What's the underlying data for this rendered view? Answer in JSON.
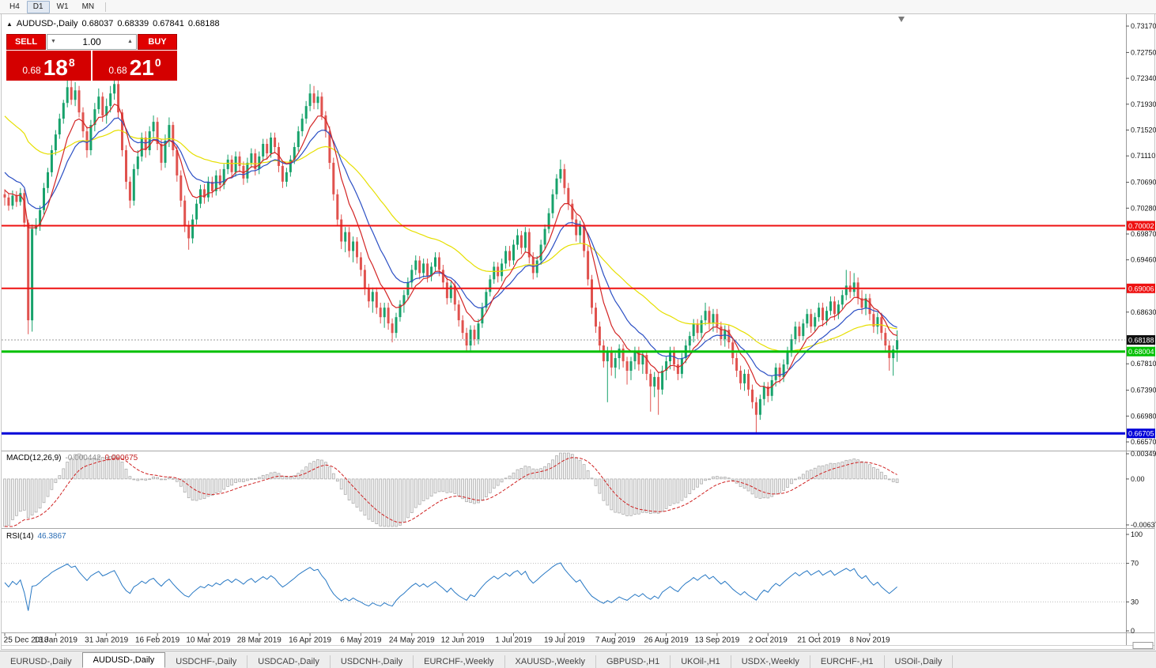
{
  "toolbar": {
    "timeframes": [
      "H4",
      "D1",
      "W1",
      "MN"
    ],
    "active_timeframe": "D1"
  },
  "chart": {
    "title": "AUDUSD-,Daily",
    "ohlc": {
      "open": "0.68037",
      "high": "0.68339",
      "low": "0.67841",
      "close": "0.68188"
    },
    "trade_panel": {
      "sell_label": "SELL",
      "buy_label": "BUY",
      "volume": "1.00",
      "sell_price": {
        "small": "0.68",
        "big": "18",
        "sup": "8"
      },
      "buy_price": {
        "small": "0.68",
        "big": "21",
        "sup": "0"
      }
    },
    "price_scale_ticks": [
      "0.73170",
      "0.72750",
      "0.72340",
      "0.71930",
      "0.71520",
      "0.71110",
      "0.70690",
      "0.70280",
      "0.69870",
      "0.69460",
      "0.68630",
      "0.67810",
      "0.67390",
      "0.66980",
      "0.66570"
    ],
    "hlines": [
      {
        "price": 0.70002,
        "label": "0.70002",
        "color": "#ee1111",
        "width": 2
      },
      {
        "price": 0.69006,
        "label": "0.69006",
        "color": "#ee1111",
        "width": 2
      },
      {
        "price": 0.68004,
        "label": "0.68004",
        "color": "#00c000",
        "width": 3
      },
      {
        "price": 0.66705,
        "label": "0.66705",
        "color": "#0000d8",
        "width": 3
      }
    ],
    "current_price": {
      "value": 0.68188,
      "label": "0.68188",
      "tag_color": "#101010"
    },
    "candle_colors": {
      "up": "#17a26b",
      "down": "#e0524e"
    },
    "ma_lines": [
      {
        "name": "fast-ma-red",
        "period": 8,
        "color": "#d32525",
        "seed": 0.706
      },
      {
        "name": "mid-ma-blue",
        "period": 16,
        "color": "#2b4fc4",
        "seed": 0.709
      },
      {
        "name": "slow-ma-yellow",
        "period": 45,
        "color": "#e6df00",
        "seed": 0.718
      }
    ],
    "dates": [
      {
        "label": "25 Dec 2018",
        "i": 0
      },
      {
        "label": "13 Jan 2019",
        "i": 13
      },
      {
        "label": "31 Jan 2019",
        "i": 26
      },
      {
        "label": "16 Feb 2019",
        "i": 39
      },
      {
        "label": "10 Mar 2019",
        "i": 52
      },
      {
        "label": "28 Mar 2019",
        "i": 65
      },
      {
        "label": "16 Apr 2019",
        "i": 78
      },
      {
        "label": "6 May 2019",
        "i": 91
      },
      {
        "label": "24 May 2019",
        "i": 104
      },
      {
        "label": "12 Jun 2019",
        "i": 117
      },
      {
        "label": "1 Jul 2019",
        "i": 130
      },
      {
        "label": "19 Jul 2019",
        "i": 143
      },
      {
        "label": "7 Aug 2019",
        "i": 156
      },
      {
        "label": "26 Aug 2019",
        "i": 169
      },
      {
        "label": "13 Sep 2019",
        "i": 182
      },
      {
        "label": "2 Oct 2019",
        "i": 195
      },
      {
        "label": "21 Oct 2019",
        "i": 208
      },
      {
        "label": "8 Nov 2019",
        "i": 221
      }
    ]
  },
  "macd_panel": {
    "label": "MACD(12,26,9)",
    "value_1": "-0.000442",
    "value_2": "0.000675",
    "scale": [
      "0.00349",
      "0.00",
      "-0.00637"
    ],
    "params": {
      "fast": 12,
      "slow": 26,
      "signal": 9
    }
  },
  "rsi_panel": {
    "label": "RSI(14)",
    "value": "46.3867",
    "scale": [
      "100",
      "70",
      "30",
      "0"
    ],
    "period": 14,
    "levels": [
      70,
      30
    ]
  },
  "tabs": {
    "active": "AUDUSD-,Daily",
    "items": [
      "EURUSD-,Daily",
      "AUDUSD-,Daily",
      "USDCHF-,Daily",
      "USDCAD-,Daily",
      "USDCNH-,Daily",
      "EURCHF-,Weekly",
      "XAUUSD-,Weekly",
      "GBPUSD-,H1",
      "UKOil-,H1",
      "USDX-,Weekly",
      "EURCHF-,H1",
      "USOil-,Daily"
    ]
  },
  "chart_data": {
    "type": "candlestick",
    "symbol": "AUDUSD",
    "timeframe": "Daily",
    "first_open": 0.705,
    "open_rule": "previous_close",
    "candles_hlc": [
      [
        0.7058,
        0.7032,
        0.7045
      ],
      [
        0.7052,
        0.7024,
        0.7032
      ],
      [
        0.7056,
        0.7026,
        0.7048
      ],
      [
        0.7055,
        0.703,
        0.7038
      ],
      [
        0.706,
        0.7032,
        0.7052
      ],
      [
        0.7058,
        0.6998,
        0.7005
      ],
      [
        0.701,
        0.6828,
        0.685
      ],
      [
        0.7002,
        0.6832,
        0.6995
      ],
      [
        0.7012,
        0.6985,
        0.7
      ],
      [
        0.7032,
        0.6992,
        0.7025
      ],
      [
        0.7068,
        0.7018,
        0.706
      ],
      [
        0.7092,
        0.7052,
        0.7085
      ],
      [
        0.7128,
        0.7078,
        0.712
      ],
      [
        0.7152,
        0.7112,
        0.7145
      ],
      [
        0.7178,
        0.7138,
        0.717
      ],
      [
        0.72,
        0.7162,
        0.7195
      ],
      [
        0.7235,
        0.7188,
        0.722
      ],
      [
        0.7232,
        0.7192,
        0.72
      ],
      [
        0.7228,
        0.719,
        0.7215
      ],
      [
        0.7222,
        0.7172,
        0.718
      ],
      [
        0.7188,
        0.714,
        0.715
      ],
      [
        0.7158,
        0.7108,
        0.712
      ],
      [
        0.7168,
        0.7112,
        0.716
      ],
      [
        0.7195,
        0.715,
        0.7185
      ],
      [
        0.7218,
        0.7178,
        0.7205
      ],
      [
        0.7212,
        0.7165,
        0.7175
      ],
      [
        0.7202,
        0.7162,
        0.719
      ],
      [
        0.7222,
        0.718,
        0.721
      ],
      [
        0.7243,
        0.72,
        0.7225
      ],
      [
        0.7232,
        0.717,
        0.718
      ],
      [
        0.7185,
        0.711,
        0.712
      ],
      [
        0.7128,
        0.7058,
        0.707
      ],
      [
        0.7078,
        0.7028,
        0.704
      ],
      [
        0.7098,
        0.7032,
        0.709
      ],
      [
        0.712,
        0.708,
        0.711
      ],
      [
        0.7148,
        0.7102,
        0.714
      ],
      [
        0.715,
        0.7108,
        0.712
      ],
      [
        0.7158,
        0.7112,
        0.715
      ],
      [
        0.7175,
        0.714,
        0.7165
      ],
      [
        0.7172,
        0.712,
        0.713
      ],
      [
        0.7138,
        0.7088,
        0.71
      ],
      [
        0.7145,
        0.7092,
        0.7135
      ],
      [
        0.7172,
        0.7125,
        0.716
      ],
      [
        0.7165,
        0.711,
        0.712
      ],
      [
        0.7128,
        0.707,
        0.708
      ],
      [
        0.7088,
        0.703,
        0.704
      ],
      [
        0.7048,
        0.699,
        0.7
      ],
      [
        0.7008,
        0.6962,
        0.698
      ],
      [
        0.7018,
        0.6972,
        0.701
      ],
      [
        0.7042,
        0.7002,
        0.7035
      ],
      [
        0.7065,
        0.7028,
        0.7058
      ],
      [
        0.7066,
        0.7035,
        0.7045
      ],
      [
        0.7078,
        0.7038,
        0.707
      ],
      [
        0.7078,
        0.7045,
        0.7055
      ],
      [
        0.7088,
        0.7048,
        0.708
      ],
      [
        0.709,
        0.7055,
        0.7065
      ],
      [
        0.7098,
        0.7058,
        0.709
      ],
      [
        0.7113,
        0.7082,
        0.7105
      ],
      [
        0.7112,
        0.7075,
        0.7085
      ],
      [
        0.7118,
        0.7078,
        0.711
      ],
      [
        0.7118,
        0.7085,
        0.7095
      ],
      [
        0.7102,
        0.7065,
        0.7075
      ],
      [
        0.7108,
        0.7068,
        0.71
      ],
      [
        0.7123,
        0.7092,
        0.7115
      ],
      [
        0.7122,
        0.708,
        0.709
      ],
      [
        0.7118,
        0.7082,
        0.711
      ],
      [
        0.7138,
        0.7102,
        0.713
      ],
      [
        0.7138,
        0.7105,
        0.7115
      ],
      [
        0.7148,
        0.7108,
        0.714
      ],
      [
        0.7148,
        0.7115,
        0.7125
      ],
      [
        0.7132,
        0.7085,
        0.7095
      ],
      [
        0.7102,
        0.706,
        0.707
      ],
      [
        0.7092,
        0.7062,
        0.7085
      ],
      [
        0.7112,
        0.7078,
        0.7105
      ],
      [
        0.7132,
        0.7098,
        0.7125
      ],
      [
        0.7158,
        0.7118,
        0.715
      ],
      [
        0.7178,
        0.7142,
        0.717
      ],
      [
        0.7198,
        0.7162,
        0.719
      ],
      [
        0.7225,
        0.7182,
        0.721
      ],
      [
        0.7222,
        0.7185,
        0.7195
      ],
      [
        0.7215,
        0.7185,
        0.7205
      ],
      [
        0.7212,
        0.7168,
        0.7175
      ],
      [
        0.7182,
        0.714,
        0.715
      ],
      [
        0.7158,
        0.709,
        0.71
      ],
      [
        0.7108,
        0.704,
        0.705
      ],
      [
        0.7058,
        0.7,
        0.701
      ],
      [
        0.7018,
        0.6963,
        0.6975
      ],
      [
        0.6998,
        0.6958,
        0.699
      ],
      [
        0.6998,
        0.695,
        0.696
      ],
      [
        0.6983,
        0.6942,
        0.6975
      ],
      [
        0.6982,
        0.694,
        0.695
      ],
      [
        0.6958,
        0.692,
        0.693
      ],
      [
        0.6938,
        0.689,
        0.69
      ],
      [
        0.6908,
        0.687,
        0.688
      ],
      [
        0.6902,
        0.6862,
        0.6895
      ],
      [
        0.6902,
        0.686,
        0.687
      ],
      [
        0.6878,
        0.6845,
        0.6855
      ],
      [
        0.6878,
        0.6838,
        0.687
      ],
      [
        0.6878,
        0.6835,
        0.6845
      ],
      [
        0.6853,
        0.6815,
        0.683
      ],
      [
        0.6862,
        0.6822,
        0.6855
      ],
      [
        0.6882,
        0.6848,
        0.6875
      ],
      [
        0.6898,
        0.6862,
        0.689
      ],
      [
        0.6918,
        0.6882,
        0.691
      ],
      [
        0.6938,
        0.6902,
        0.693
      ],
      [
        0.6953,
        0.6922,
        0.6945
      ],
      [
        0.6952,
        0.6915,
        0.6925
      ],
      [
        0.6948,
        0.6918,
        0.694
      ],
      [
        0.6948,
        0.691,
        0.692
      ],
      [
        0.6942,
        0.6912,
        0.6935
      ],
      [
        0.6958,
        0.6928,
        0.695
      ],
      [
        0.6958,
        0.692,
        0.693
      ],
      [
        0.6938,
        0.69,
        0.691
      ],
      [
        0.6918,
        0.6875,
        0.6885
      ],
      [
        0.6912,
        0.6878,
        0.6905
      ],
      [
        0.6912,
        0.6865,
        0.6875
      ],
      [
        0.6882,
        0.684,
        0.685
      ],
      [
        0.6858,
        0.682,
        0.683
      ],
      [
        0.6838,
        0.68,
        0.681
      ],
      [
        0.6842,
        0.6802,
        0.6835
      ],
      [
        0.6842,
        0.681,
        0.682
      ],
      [
        0.6852,
        0.6812,
        0.6845
      ],
      [
        0.6878,
        0.6838,
        0.687
      ],
      [
        0.6902,
        0.6862,
        0.6895
      ],
      [
        0.6922,
        0.6888,
        0.6915
      ],
      [
        0.6943,
        0.6908,
        0.6935
      ],
      [
        0.6942,
        0.691,
        0.692
      ],
      [
        0.6948,
        0.6912,
        0.694
      ],
      [
        0.6968,
        0.6932,
        0.696
      ],
      [
        0.6968,
        0.6935,
        0.6945
      ],
      [
        0.6978,
        0.6938,
        0.697
      ],
      [
        0.6995,
        0.6962,
        0.6985
      ],
      [
        0.6992,
        0.6955,
        0.6965
      ],
      [
        0.6998,
        0.6958,
        0.699
      ],
      [
        0.6996,
        0.694,
        0.695
      ],
      [
        0.6958,
        0.6915,
        0.6925
      ],
      [
        0.6952,
        0.6918,
        0.6945
      ],
      [
        0.6978,
        0.6938,
        0.697
      ],
      [
        0.7002,
        0.6962,
        0.6995
      ],
      [
        0.7028,
        0.6988,
        0.702
      ],
      [
        0.7058,
        0.7012,
        0.705
      ],
      [
        0.7082,
        0.7042,
        0.7075
      ],
      [
        0.7105,
        0.7068,
        0.709
      ],
      [
        0.7098,
        0.705,
        0.706
      ],
      [
        0.7068,
        0.7025,
        0.7035
      ],
      [
        0.7042,
        0.7,
        0.701
      ],
      [
        0.7018,
        0.6975,
        0.6985
      ],
      [
        0.7008,
        0.6972,
        0.7
      ],
      [
        0.7005,
        0.695,
        0.696
      ],
      [
        0.6968,
        0.6905,
        0.6915
      ],
      [
        0.6922,
        0.686,
        0.687
      ],
      [
        0.6878,
        0.683,
        0.684
      ],
      [
        0.6848,
        0.68,
        0.681
      ],
      [
        0.6818,
        0.6775,
        0.6785
      ],
      [
        0.6808,
        0.672,
        0.68
      ],
      [
        0.6808,
        0.6762,
        0.6775
      ],
      [
        0.6798,
        0.6758,
        0.679
      ],
      [
        0.6812,
        0.6772,
        0.6805
      ],
      [
        0.6812,
        0.6775,
        0.6785
      ],
      [
        0.6792,
        0.6748,
        0.677
      ],
      [
        0.6792,
        0.6755,
        0.6785
      ],
      [
        0.6808,
        0.6772,
        0.68
      ],
      [
        0.6808,
        0.677,
        0.678
      ],
      [
        0.6802,
        0.6765,
        0.6795
      ],
      [
        0.68,
        0.6755,
        0.6765
      ],
      [
        0.6772,
        0.6705,
        0.6745
      ],
      [
        0.6768,
        0.6728,
        0.676
      ],
      [
        0.6768,
        0.67,
        0.674
      ],
      [
        0.6778,
        0.6732,
        0.677
      ],
      [
        0.6792,
        0.6755,
        0.6785
      ],
      [
        0.6808,
        0.6772,
        0.68
      ],
      [
        0.6808,
        0.677,
        0.678
      ],
      [
        0.6788,
        0.6755,
        0.6765
      ],
      [
        0.6798,
        0.6758,
        0.679
      ],
      [
        0.6818,
        0.6782,
        0.681
      ],
      [
        0.6832,
        0.6798,
        0.6825
      ],
      [
        0.6852,
        0.6815,
        0.6845
      ],
      [
        0.6852,
        0.682,
        0.683
      ],
      [
        0.6858,
        0.6822,
        0.685
      ],
      [
        0.6878,
        0.6842,
        0.6865
      ],
      [
        0.6872,
        0.6835,
        0.6845
      ],
      [
        0.6868,
        0.6832,
        0.686
      ],
      [
        0.6868,
        0.683,
        0.684
      ],
      [
        0.6848,
        0.681,
        0.682
      ],
      [
        0.6842,
        0.6808,
        0.6835
      ],
      [
        0.6842,
        0.6805,
        0.6815
      ],
      [
        0.6822,
        0.678,
        0.679
      ],
      [
        0.6798,
        0.676,
        0.677
      ],
      [
        0.6778,
        0.674,
        0.675
      ],
      [
        0.6772,
        0.6738,
        0.6765
      ],
      [
        0.6772,
        0.673,
        0.674
      ],
      [
        0.6748,
        0.671,
        0.672
      ],
      [
        0.6728,
        0.6672,
        0.67
      ],
      [
        0.6732,
        0.6692,
        0.6725
      ],
      [
        0.6752,
        0.6715,
        0.6745
      ],
      [
        0.6752,
        0.672,
        0.673
      ],
      [
        0.6762,
        0.6722,
        0.6755
      ],
      [
        0.6782,
        0.6745,
        0.6775
      ],
      [
        0.6782,
        0.675,
        0.676
      ],
      [
        0.6788,
        0.6752,
        0.678
      ],
      [
        0.6808,
        0.6772,
        0.68
      ],
      [
        0.6828,
        0.6792,
        0.682
      ],
      [
        0.6848,
        0.6812,
        0.684
      ],
      [
        0.6848,
        0.6815,
        0.6825
      ],
      [
        0.6852,
        0.6818,
        0.6845
      ],
      [
        0.6868,
        0.6838,
        0.686
      ],
      [
        0.6868,
        0.683,
        0.684
      ],
      [
        0.6862,
        0.6832,
        0.6855
      ],
      [
        0.6878,
        0.6848,
        0.687
      ],
      [
        0.6878,
        0.684,
        0.685
      ],
      [
        0.6872,
        0.6842,
        0.6865
      ],
      [
        0.6888,
        0.6858,
        0.688
      ],
      [
        0.6888,
        0.685,
        0.686
      ],
      [
        0.6882,
        0.6852,
        0.6875
      ],
      [
        0.6898,
        0.6868,
        0.689
      ],
      [
        0.693,
        0.6882,
        0.6905
      ],
      [
        0.6928,
        0.6885,
        0.6895
      ],
      [
        0.6925,
        0.6888,
        0.691
      ],
      [
        0.6918,
        0.6875,
        0.6885
      ],
      [
        0.6898,
        0.686,
        0.687
      ],
      [
        0.6892,
        0.6858,
        0.6885
      ],
      [
        0.6892,
        0.685,
        0.686
      ],
      [
        0.6868,
        0.683,
        0.684
      ],
      [
        0.6862,
        0.6828,
        0.6855
      ],
      [
        0.6862,
        0.682,
        0.683
      ],
      [
        0.6838,
        0.68,
        0.681
      ],
      [
        0.6818,
        0.677,
        0.679
      ],
      [
        0.681,
        0.6762,
        0.68037
      ],
      [
        0.68339,
        0.67841,
        0.68188
      ]
    ]
  }
}
